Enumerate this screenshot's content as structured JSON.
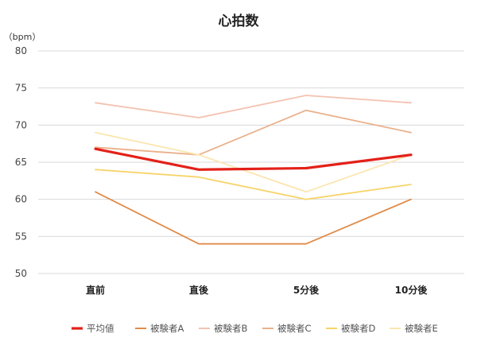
{
  "chart_data": {
    "type": "line",
    "title": "心拍数",
    "unit_label": "（bpm）",
    "categories": [
      "直前",
      "直後",
      "5分後",
      "10分後"
    ],
    "ylim": [
      50,
      80
    ],
    "yticks": [
      50,
      55,
      60,
      65,
      70,
      75,
      80
    ],
    "grid": true,
    "legend_position": "bottom",
    "series": [
      {
        "name": "平均値",
        "values": [
          66.8,
          64,
          64.2,
          66
        ],
        "color": "#e32119",
        "emphasis": true
      },
      {
        "name": "被験者A",
        "values": [
          61,
          54,
          54,
          60
        ],
        "color": "#e08c4a"
      },
      {
        "name": "被験者B",
        "values": [
          73,
          71,
          74,
          73
        ],
        "color": "#f4c2b0"
      },
      {
        "name": "被験者C",
        "values": [
          67,
          66,
          72,
          69
        ],
        "color": "#e9b08a"
      },
      {
        "name": "被験者D",
        "values": [
          64,
          63,
          60,
          62
        ],
        "color": "#f6d46b"
      },
      {
        "name": "被験者E",
        "values": [
          69,
          66,
          61,
          66
        ],
        "color": "#fbe6b0"
      }
    ]
  }
}
